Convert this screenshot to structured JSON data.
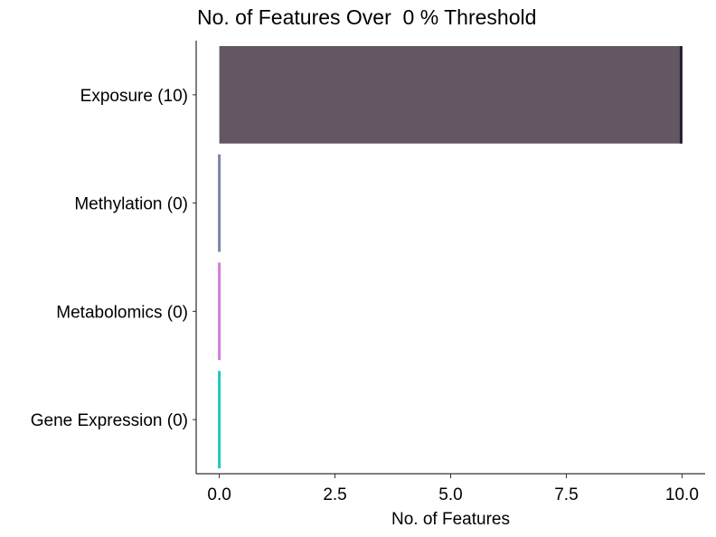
{
  "chart_data": {
    "type": "bar",
    "orientation": "horizontal",
    "title": "No. of Features Over  0 % Threshold",
    "xlabel": "No. of Features",
    "ylabel": "",
    "categories": [
      "Exposure (10)",
      "Methylation (0)",
      "Metabolomics (0)",
      "Gene Expression (0)"
    ],
    "values": [
      10,
      0,
      0,
      0
    ],
    "bar_colors": [
      "#625763",
      "#7b87a8",
      "#d27cdc",
      "#1ec8c0"
    ],
    "bar_edge_colors": [
      "#2a1a2e",
      "#7b87a8",
      "#d27cdc",
      "#1ec8c0"
    ],
    "xlim": [
      -0.5,
      10.5
    ],
    "xticks": [
      0.0,
      2.5,
      5.0,
      7.5,
      10.0
    ],
    "xtick_labels": [
      "0.0",
      "2.5",
      "5.0",
      "7.5",
      "10.0"
    ],
    "grid": false,
    "legend": "none"
  }
}
